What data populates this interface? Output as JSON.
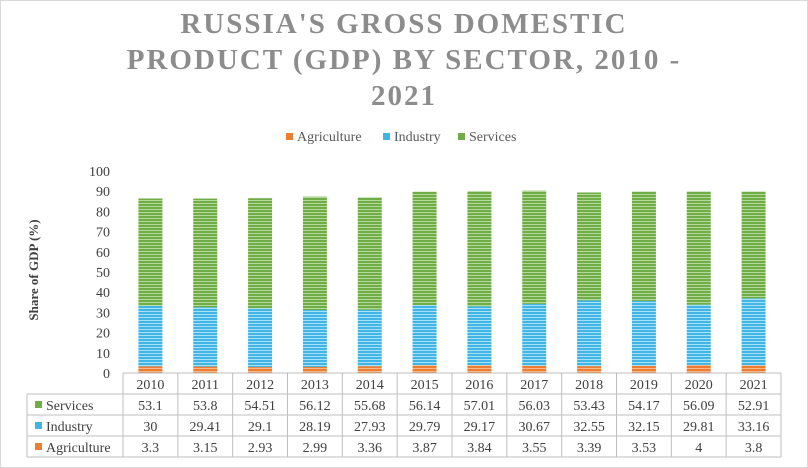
{
  "chart_data": {
    "type": "bar",
    "stacked": true,
    "title_lines": [
      "RUSSIA'S GROSS DOMESTIC",
      "PRODUCT (GDP) BY SECTOR, 2010 -",
      "2021"
    ],
    "xlabel": "",
    "ylabel": "Share of GDP (%)",
    "ylim": [
      0,
      100
    ],
    "yticks": [
      "0",
      "10",
      "20",
      "30",
      "40",
      "50",
      "60",
      "70",
      "80",
      "90",
      "100"
    ],
    "legend_position": "top",
    "grid": false,
    "data_table": true,
    "categories": [
      "2010",
      "2011",
      "2012",
      "2013",
      "2014",
      "2015",
      "2016",
      "2017",
      "2018",
      "2019",
      "2020",
      "2021"
    ],
    "series": [
      {
        "name": "Agriculture",
        "color": "#ed7d31",
        "values": [
          3.3,
          3.15,
          2.93,
          2.99,
          3.36,
          3.87,
          3.84,
          3.55,
          3.39,
          3.53,
          4,
          3.8
        ]
      },
      {
        "name": "Industry",
        "color": "#41b6e6",
        "values": [
          30,
          29.41,
          29.1,
          28.19,
          27.93,
          29.79,
          29.17,
          30.67,
          32.55,
          32.15,
          29.81,
          33.16
        ]
      },
      {
        "name": "Services",
        "color": "#70ad47",
        "values": [
          53.1,
          53.8,
          54.51,
          56.12,
          55.68,
          56.14,
          57.01,
          56.03,
          53.43,
          54.17,
          56.09,
          52.91
        ]
      }
    ],
    "table_rows": [
      {
        "name": "Services",
        "color": "#70ad47",
        "values": [
          "53.1",
          "53.8",
          "54.51",
          "56.12",
          "55.68",
          "56.14",
          "57.01",
          "56.03",
          "53.43",
          "54.17",
          "56.09",
          "52.91"
        ]
      },
      {
        "name": "Industry",
        "color": "#41b6e6",
        "values": [
          "30",
          "29.41",
          "29.1",
          "28.19",
          "27.93",
          "29.79",
          "29.17",
          "30.67",
          "32.55",
          "32.15",
          "29.81",
          "33.16"
        ]
      },
      {
        "name": "Agriculture",
        "color": "#ed7d31",
        "values": [
          "3.3",
          "3.15",
          "2.93",
          "2.99",
          "3.36",
          "3.87",
          "3.84",
          "3.55",
          "3.39",
          "3.53",
          "4",
          "3.8"
        ]
      }
    ]
  }
}
